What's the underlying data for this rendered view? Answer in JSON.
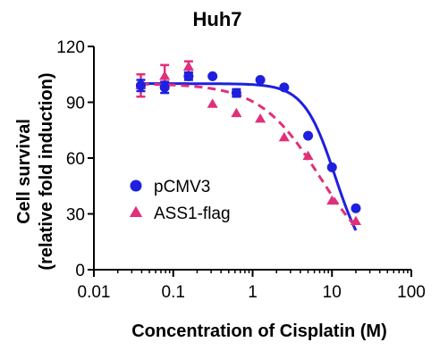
{
  "chart_data": {
    "type": "scatter",
    "title": "Huh7",
    "xlabel": "Concentration of Cisplatin (M)",
    "ylabel": [
      "Cell survival",
      "(relative fold induction)"
    ],
    "x_scale": "log",
    "xlim": [
      0.01,
      100
    ],
    "ylim": [
      0,
      120
    ],
    "x_ticks": [
      {
        "value": 0.01,
        "label": "0.01"
      },
      {
        "value": 0.1,
        "label": "0.1"
      },
      {
        "value": 1,
        "label": "1"
      },
      {
        "value": 10,
        "label": "10"
      },
      {
        "value": 100,
        "label": "100"
      }
    ],
    "y_ticks": [
      {
        "value": 0,
        "label": "0"
      },
      {
        "value": 30,
        "label": "30"
      },
      {
        "value": 60,
        "label": "60"
      },
      {
        "value": 90,
        "label": "90"
      },
      {
        "value": 120,
        "label": "120"
      }
    ],
    "legend_position": "left-middle",
    "grid": false,
    "series": [
      {
        "name": "pCMV3",
        "color": "#1f1fe0",
        "marker": "circle",
        "fit_line": "solid",
        "points": [
          {
            "x": 0.039,
            "y": 99,
            "err": 3
          },
          {
            "x": 0.078,
            "y": 98,
            "err": 3
          },
          {
            "x": 0.156,
            "y": 104,
            "err": 2
          },
          {
            "x": 0.3125,
            "y": 104,
            "err": 0
          },
          {
            "x": 0.625,
            "y": 95,
            "err": 2
          },
          {
            "x": 1.25,
            "y": 102,
            "err": 0
          },
          {
            "x": 2.5,
            "y": 98,
            "err": 0
          },
          {
            "x": 5,
            "y": 72,
            "err": 0
          },
          {
            "x": 10,
            "y": 55,
            "err": 0
          },
          {
            "x": 20,
            "y": 33,
            "err": 0
          }
        ],
        "fit": {
          "top": 100,
          "bottom": 0,
          "ic50": 11,
          "hill": 2.2
        }
      },
      {
        "name": "ASS1-flag",
        "color": "#e0307a",
        "marker": "triangle",
        "fit_line": "dashed",
        "points": [
          {
            "x": 0.039,
            "y": 99,
            "err": 6
          },
          {
            "x": 0.078,
            "y": 104,
            "err": 6
          },
          {
            "x": 0.156,
            "y": 109,
            "err": 3
          },
          {
            "x": 0.3125,
            "y": 89,
            "err": 0
          },
          {
            "x": 0.625,
            "y": 84,
            "err": 0
          },
          {
            "x": 1.25,
            "y": 81,
            "err": 0
          },
          {
            "x": 2.5,
            "y": 71,
            "err": 0
          },
          {
            "x": 5,
            "y": 61,
            "err": 0
          },
          {
            "x": 10,
            "y": 37,
            "err": 0
          },
          {
            "x": 20,
            "y": 26,
            "err": 0
          }
        ],
        "fit": {
          "top": 100,
          "bottom": 0,
          "ic50": 7,
          "hill": 1.15
        }
      }
    ]
  }
}
